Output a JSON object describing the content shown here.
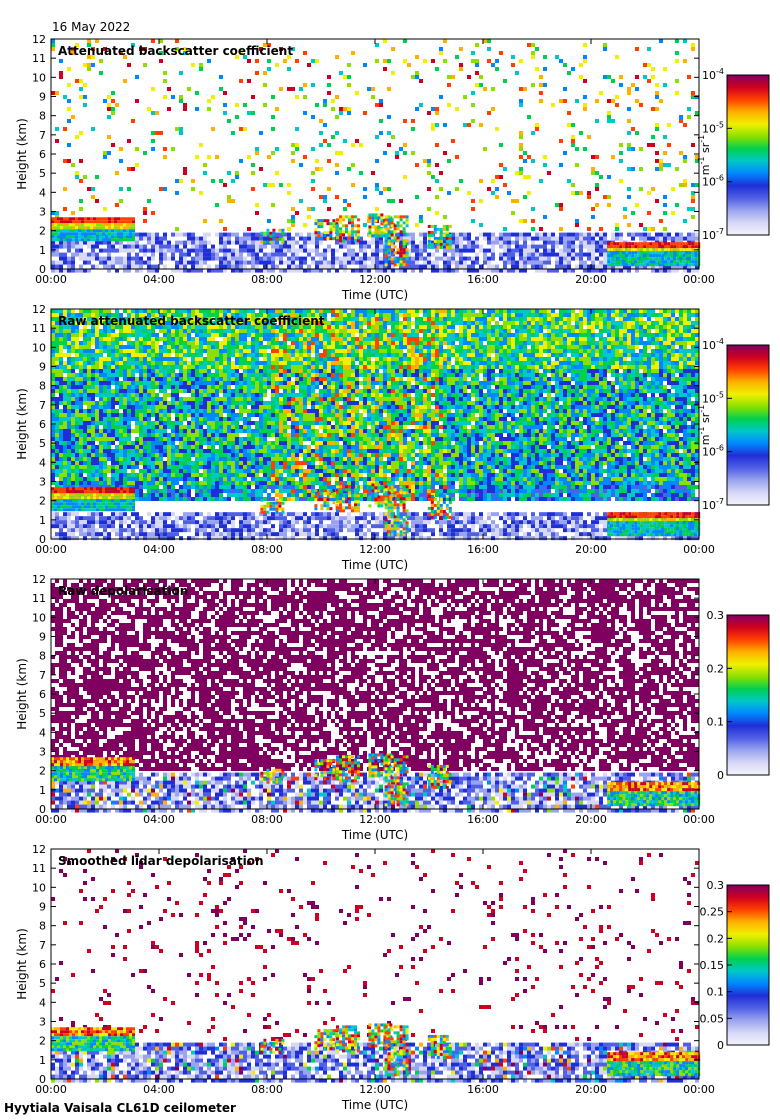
{
  "header": {
    "date": "16 May 2022"
  },
  "footer": {
    "caption": "Hyytiala Vaisala CL61D ceilometer"
  },
  "chart_data": [
    {
      "type": "heatmap",
      "title": "Attenuated backscatter coefficient",
      "xlabel": "Time (UTC)",
      "ylabel": "Height (km)",
      "xticks": [
        "00:00",
        "04:00",
        "08:00",
        "12:00",
        "16:00",
        "20:00",
        "00:00"
      ],
      "xlim": [
        0,
        24
      ],
      "ylim": [
        0,
        12
      ],
      "yticks": [
        0,
        1,
        2,
        3,
        4,
        5,
        6,
        7,
        8,
        9,
        10,
        11,
        12
      ],
      "colorbar": {
        "scale": "log",
        "range": [
          1e-07,
          0.0001
        ],
        "ticks": [
          {
            "base": "10",
            "exp": "-7"
          },
          {
            "base": "10",
            "exp": "-6"
          },
          {
            "base": "10",
            "exp": "-5"
          },
          {
            "base": "10",
            "exp": "-4"
          }
        ],
        "unit": {
          "a": "m",
          "a_exp": "-1",
          "b": " sr",
          "b_exp": "-1"
        }
      },
      "features": {
        "cloud_layers": [
          {
            "t_start": 0.0,
            "t_end": 3.1,
            "base_km": 1.5,
            "top_km": 2.7
          },
          {
            "t_start": 20.6,
            "t_end": 24.0,
            "base_km": 0.3,
            "top_km": 1.4
          }
        ],
        "boundary_layer_top_km": 1.9,
        "convective_period": [
          8.0,
          14.6
        ]
      }
    },
    {
      "type": "heatmap",
      "title": "Raw attenuated backscatter coefficient",
      "xlabel": "Time (UTC)",
      "ylabel": "Height (km)",
      "xticks": [
        "00:00",
        "04:00",
        "08:00",
        "12:00",
        "16:00",
        "20:00",
        "00:00"
      ],
      "xlim": [
        0,
        24
      ],
      "ylim": [
        0,
        12
      ],
      "yticks": [
        0,
        1,
        2,
        3,
        4,
        5,
        6,
        7,
        8,
        9,
        10,
        11,
        12
      ],
      "colorbar": {
        "scale": "log",
        "range": [
          1e-07,
          0.0001
        ],
        "ticks": [
          {
            "base": "10",
            "exp": "-7"
          },
          {
            "base": "10",
            "exp": "-6"
          },
          {
            "base": "10",
            "exp": "-5"
          },
          {
            "base": "10",
            "exp": "-4"
          }
        ],
        "unit": {
          "a": "m",
          "a_exp": "-1",
          "b": " sr",
          "b_exp": "-1"
        }
      }
    },
    {
      "type": "heatmap",
      "title": "Raw depolarisation",
      "xlabel": "Time (UTC)",
      "ylabel": "Height (km)",
      "xticks": [
        "00:00",
        "04:00",
        "08:00",
        "12:00",
        "16:00",
        "20:00",
        "00:00"
      ],
      "xlim": [
        0,
        24
      ],
      "ylim": [
        0,
        12
      ],
      "yticks": [
        0,
        1,
        2,
        3,
        4,
        5,
        6,
        7,
        8,
        9,
        10,
        11,
        12
      ],
      "colorbar": {
        "scale": "linear",
        "range": [
          0,
          0.3
        ],
        "ticks": [
          {
            "v": 0,
            "label": "0"
          },
          {
            "v": 0.1,
            "label": "0.1"
          },
          {
            "v": 0.2,
            "label": "0.2"
          },
          {
            "v": 0.3,
            "label": "0.3"
          }
        ]
      }
    },
    {
      "type": "heatmap",
      "title": "Smoothed lidar depolarisation",
      "xlabel": "Time (UTC)",
      "ylabel": "Height (km)",
      "xticks": [
        "00:00",
        "04:00",
        "08:00",
        "12:00",
        "16:00",
        "20:00",
        "00:00"
      ],
      "xlim": [
        0,
        24
      ],
      "ylim": [
        0,
        12
      ],
      "yticks": [
        0,
        1,
        2,
        3,
        4,
        5,
        6,
        7,
        8,
        9,
        10,
        11,
        12
      ],
      "colorbar": {
        "scale": "linear",
        "range": [
          0,
          0.3
        ],
        "ticks": [
          {
            "v": 0,
            "label": "0"
          },
          {
            "v": 0.05,
            "label": "0.05"
          },
          {
            "v": 0.1,
            "label": "0.1"
          },
          {
            "v": 0.15,
            "label": "0.15"
          },
          {
            "v": 0.2,
            "label": "0.2"
          },
          {
            "v": 0.25,
            "label": "0.25"
          },
          {
            "v": 0.3,
            "label": "0.3"
          }
        ]
      }
    }
  ],
  "colormap": [
    "#f4f4fb",
    "#d6d8f6",
    "#9aa4ee",
    "#5060e6",
    "#1f2fd6",
    "#0088ff",
    "#00c8c8",
    "#00d050",
    "#8ce000",
    "#f0f000",
    "#ffb000",
    "#ff4000",
    "#d00020",
    "#800060"
  ]
}
